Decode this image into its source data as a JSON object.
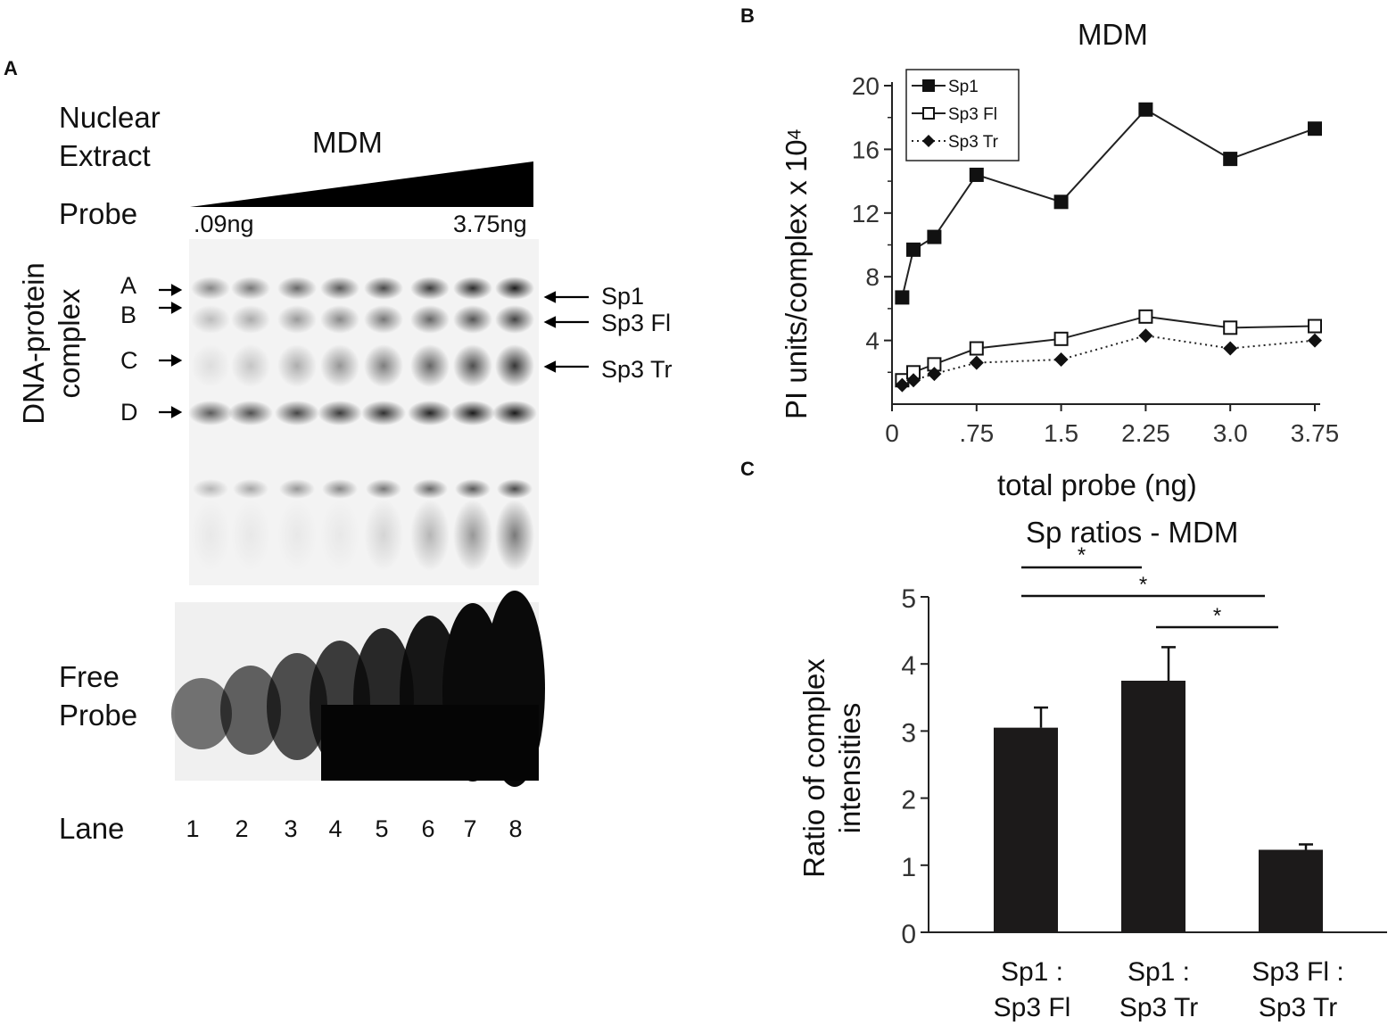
{
  "panels": {
    "a": "A",
    "b": "B",
    "c": "C"
  },
  "panel_a": {
    "nuclear_extract": [
      "Nuclear",
      "Extract"
    ],
    "mdm_label": "MDM",
    "probe_label": "Probe",
    "probe_low": ".09ng",
    "probe_high": "3.75ng",
    "complex_axis_label": [
      "DNA-protein",
      "complex"
    ],
    "bands": [
      "A",
      "B",
      "C",
      "D"
    ],
    "band_ids": [
      "Sp1",
      "Sp3 Fl",
      "Sp3 Tr"
    ],
    "free_probe": [
      "Free",
      "Probe"
    ],
    "lane_label": "Lane",
    "lanes": [
      "1",
      "2",
      "3",
      "4",
      "5",
      "6",
      "7",
      "8"
    ]
  },
  "chart_data": [
    {
      "type": "line",
      "title": "MDM",
      "xlabel": "total probe (ng)",
      "ylabel": "PI units/complex  x 10",
      "ylabel_sup": "4",
      "xlim": [
        0,
        3.75
      ],
      "ylim": [
        0,
        20
      ],
      "xticks": [
        0,
        0.75,
        1.5,
        2.25,
        3.0,
        3.75
      ],
      "xtick_labels": [
        "0",
        ".75",
        "1.5",
        "2.25",
        "3.0",
        "3.75"
      ],
      "yticks": [
        4,
        8,
        12,
        16,
        20
      ],
      "ytick_labels": [
        "4",
        "8",
        "12",
        "16",
        "20"
      ],
      "legend_position": "top-left",
      "series": [
        {
          "name": "Sp1",
          "marker": "filled-square",
          "line": "solid",
          "x": [
            0.09,
            0.19,
            0.375,
            0.75,
            1.5,
            2.25,
            3.0,
            3.75
          ],
          "y": [
            6.7,
            9.7,
            10.5,
            14.4,
            12.7,
            18.5,
            15.4,
            17.3
          ]
        },
        {
          "name": "Sp3 Fl",
          "marker": "open-square",
          "line": "solid",
          "x": [
            0.09,
            0.19,
            0.375,
            0.75,
            1.5,
            2.25,
            3.0,
            3.75
          ],
          "y": [
            1.5,
            2.0,
            2.5,
            3.5,
            4.1,
            5.5,
            4.8,
            4.9
          ]
        },
        {
          "name": "Sp3 Tr",
          "marker": "filled-diamond",
          "line": "dotted",
          "x": [
            0.09,
            0.19,
            0.375,
            0.75,
            1.5,
            2.25,
            3.0,
            3.75
          ],
          "y": [
            1.2,
            1.5,
            1.9,
            2.6,
            2.8,
            4.3,
            3.5,
            4.0
          ]
        }
      ]
    },
    {
      "type": "bar",
      "title": "Sp ratios - MDM",
      "xlabel": "",
      "ylabel": [
        "Ratio of complex",
        "intensities"
      ],
      "ylim": [
        0,
        5
      ],
      "yticks": [
        0,
        1,
        2,
        3,
        4,
        5
      ],
      "categories": [
        [
          "Sp1 :",
          "Sp3 Fl"
        ],
        [
          "Sp1 :",
          "Sp3 Tr"
        ],
        [
          "Sp3 Fl :",
          "Sp3 Tr"
        ]
      ],
      "values": [
        3.05,
        3.75,
        1.23
      ],
      "errors": [
        0.3,
        0.5,
        0.08
      ],
      "significance": [
        {
          "from": 0,
          "to": 1,
          "label": "*"
        },
        {
          "from": 0,
          "to": 2,
          "label": "*"
        },
        {
          "from": 1,
          "to": 2,
          "label": "*"
        }
      ]
    }
  ]
}
